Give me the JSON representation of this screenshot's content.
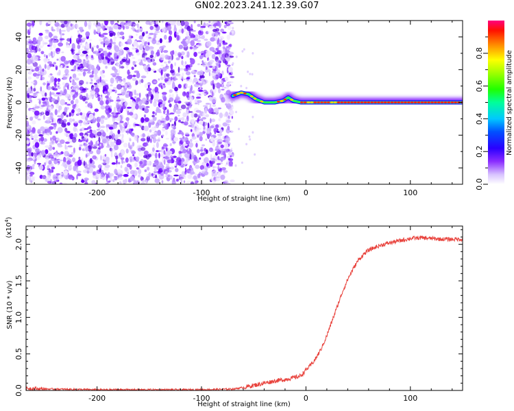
{
  "title": "GN02.2023.241.12.39.G07",
  "colors": {
    "line": "#e8403a",
    "axis": "#000000"
  },
  "chart_data": [
    {
      "type": "heatmap",
      "xlabel": "Height of straight line (km)",
      "ylabel": "Frequency (Hz)",
      "xlim": [
        -268,
        150
      ],
      "ylim": [
        -50,
        50
      ],
      "xticks": [
        -200,
        -100,
        0,
        100
      ],
      "yticks": [
        -40,
        -20,
        0,
        20,
        40
      ],
      "noise_region_x": [
        -268,
        -72
      ],
      "signal_track": [
        {
          "x": -70,
          "y": 4
        },
        {
          "x": -62,
          "y": 6
        },
        {
          "x": -55,
          "y": 5
        },
        {
          "x": -48,
          "y": 2
        },
        {
          "x": -40,
          "y": 0
        },
        {
          "x": -30,
          "y": 0
        },
        {
          "x": -22,
          "y": 1
        },
        {
          "x": -17,
          "y": 3
        },
        {
          "x": -12,
          "y": 1
        },
        {
          "x": -5,
          "y": 0
        },
        {
          "x": 0,
          "y": 0
        },
        {
          "x": 20,
          "y": 0
        },
        {
          "x": 50,
          "y": 0
        },
        {
          "x": 100,
          "y": 0
        },
        {
          "x": 150,
          "y": 0
        }
      ],
      "colorbar": {
        "label": "Normalized spectral amplitude",
        "range": [
          0,
          1
        ],
        "ticks": [
          0.0,
          0.2,
          0.4,
          0.6,
          0.8
        ],
        "tick_labels": [
          "0.0",
          "0.2",
          "0.4",
          "0.6",
          "0.8"
        ],
        "colors": [
          "#ffffff",
          "#c9a8ff",
          "#7000ff",
          "#0000ff",
          "#00c8ff",
          "#00ff80",
          "#40ff00",
          "#ffff00",
          "#ff8000",
          "#ff0000",
          "#ff0080"
        ]
      }
    },
    {
      "type": "line",
      "xlabel": "Height of straight line (km)",
      "ylabel": "SNR (10 * v/v)",
      "scale_label": "(x10",
      "scale_exp": "4",
      "scale_close": ")",
      "xlim": [
        -268,
        150
      ],
      "ylim": [
        0,
        2.25
      ],
      "xticks": [
        -200,
        -100,
        0,
        100
      ],
      "yticks": [
        0.0,
        0.5,
        1.0,
        1.5,
        2.0
      ],
      "ytick_labels": [
        "0.0",
        "0.5",
        "1.0",
        "1.5",
        "2.0"
      ],
      "series": [
        {
          "x": [
            -268,
            -250,
            -200,
            -150,
            -100,
            -70,
            -60,
            -50,
            -40,
            -30,
            -20,
            -10,
            -5,
            0,
            5,
            10,
            15,
            20,
            25,
            30,
            35,
            40,
            45,
            50,
            55,
            60,
            70,
            80,
            90,
            100,
            110,
            120,
            130,
            140,
            150
          ],
          "y": [
            0.03,
            0.02,
            0.01,
            0.01,
            0.01,
            0.02,
            0.04,
            0.07,
            0.1,
            0.13,
            0.15,
            0.18,
            0.2,
            0.28,
            0.35,
            0.45,
            0.58,
            0.75,
            0.95,
            1.15,
            1.35,
            1.52,
            1.66,
            1.78,
            1.86,
            1.92,
            1.98,
            2.02,
            2.05,
            2.08,
            2.09,
            2.08,
            2.07,
            2.07,
            2.07
          ]
        }
      ]
    }
  ],
  "xtick_labels": [
    "-200",
    "-100",
    "0",
    "100"
  ],
  "ytick_labels_top": [
    "-40",
    "-20",
    "0",
    "20",
    "40"
  ]
}
